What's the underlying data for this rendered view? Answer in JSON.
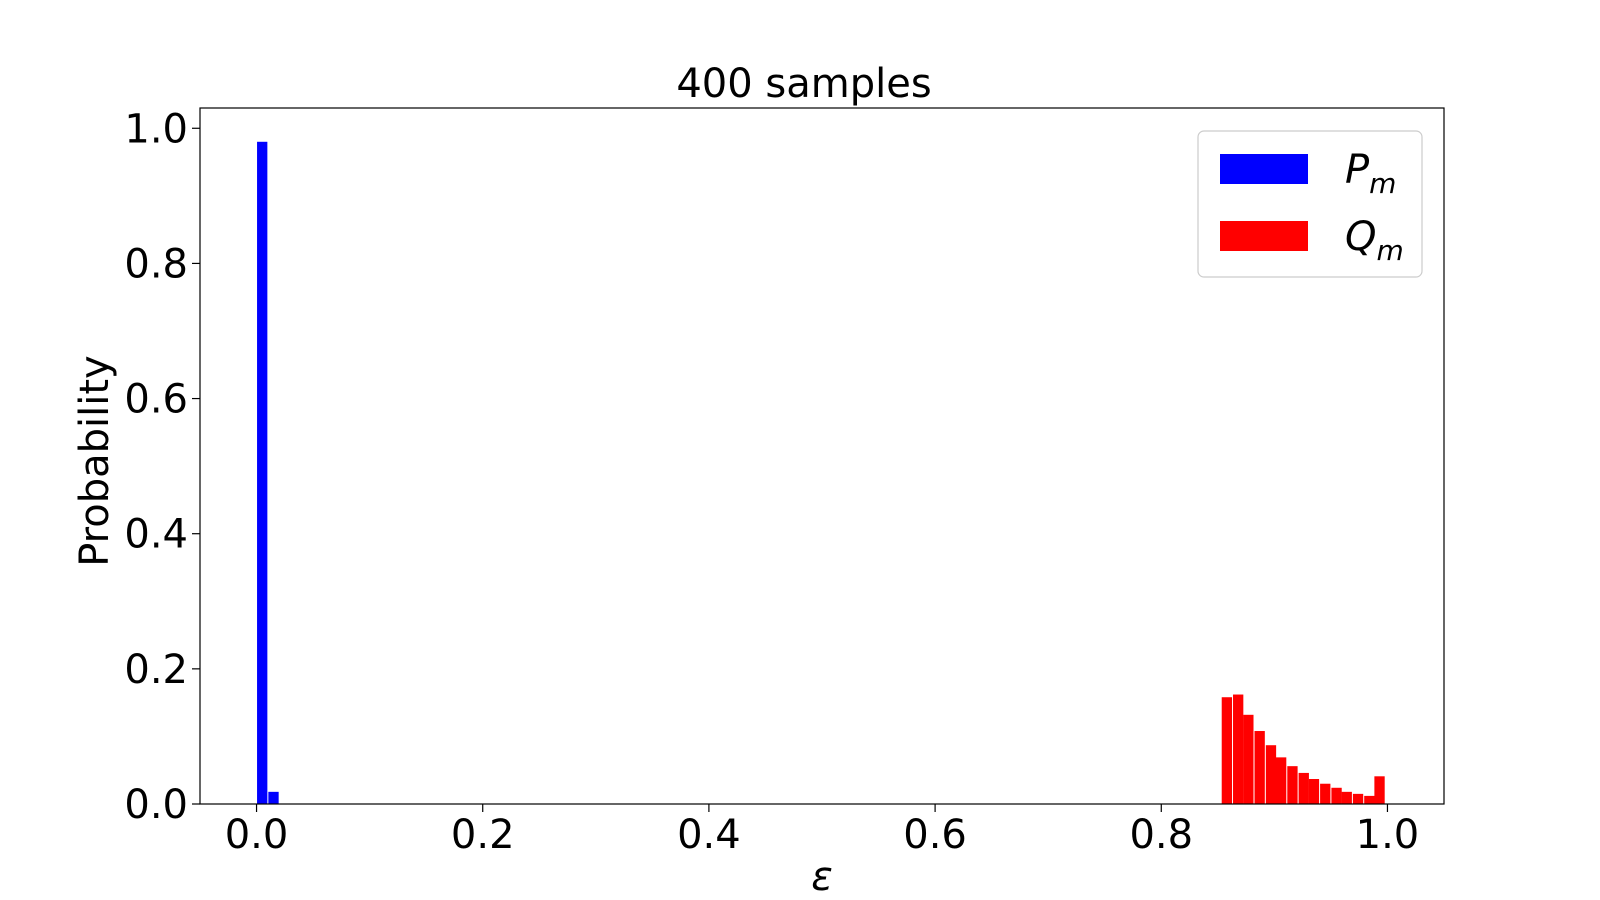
{
  "chart_data": {
    "type": "bar",
    "title": "400 samples",
    "xlabel": "ε",
    "ylabel": "Probability",
    "xlim": [
      -0.05,
      1.05
    ],
    "ylim": [
      0.0,
      1.03
    ],
    "xticks": [
      0.0,
      0.2,
      0.4,
      0.6,
      0.8,
      1.0
    ],
    "xtick_labels": [
      "0.0",
      "0.2",
      "0.4",
      "0.6",
      "0.8",
      "1.0"
    ],
    "yticks": [
      0.0,
      0.2,
      0.4,
      0.6,
      0.8,
      1.0
    ],
    "ytick_labels": [
      "0.0",
      "0.2",
      "0.4",
      "0.6",
      "0.8",
      "1.0"
    ],
    "bin_width": 0.01,
    "grid": false,
    "legend_position": "top-right",
    "series": [
      {
        "name_base": "P",
        "name_sub": "m",
        "color": "#0000ff",
        "x": [
          0.005,
          0.015
        ],
        "values": [
          0.98,
          0.018
        ]
      },
      {
        "name_base": "Q",
        "name_sub": "m",
        "color": "#ff0000",
        "x": [
          0.858,
          0.868,
          0.877,
          0.887,
          0.897,
          0.906,
          0.916,
          0.926,
          0.935,
          0.945,
          0.955,
          0.964,
          0.974,
          0.984,
          0.993
        ],
        "values": [
          0.158,
          0.162,
          0.132,
          0.108,
          0.087,
          0.069,
          0.056,
          0.046,
          0.037,
          0.03,
          0.024,
          0.018,
          0.015,
          0.012,
          0.041
        ]
      }
    ]
  }
}
